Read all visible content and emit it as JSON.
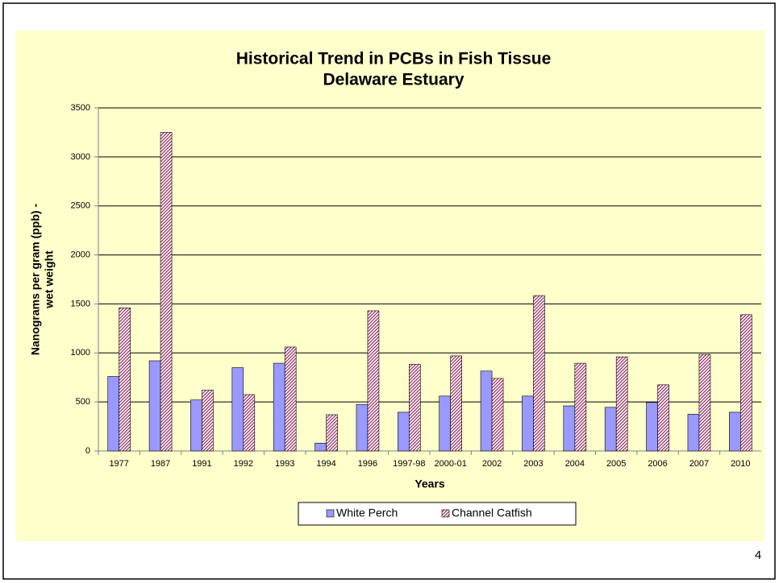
{
  "chart_data": {
    "type": "bar",
    "title": "Historical Trend in PCBs in Fish Tissue",
    "subtitle": "Delaware Estuary",
    "y_label": [
      "Nanograms per gram (ppb) -",
      "wet weight"
    ],
    "x_label": "Years",
    "categories": [
      "1977",
      "1987",
      "1991",
      "1992",
      "1993",
      "1994",
      "1996",
      "1997-98",
      "2000-01",
      "2002",
      "2003",
      "2004",
      "2005",
      "2006",
      "2007",
      "2010"
    ],
    "series": [
      {
        "name": "White Perch",
        "color": "#9999ff",
        "values": [
          760,
          920,
          520,
          850,
          895,
          80,
          475,
          395,
          560,
          815,
          560,
          460,
          445,
          495,
          375,
          395
        ]
      },
      {
        "name": "Channel Catfish",
        "color": "#993366",
        "values": [
          1460,
          3250,
          620,
          575,
          1060,
          370,
          1430,
          885,
          970,
          740,
          1585,
          895,
          960,
          675,
          985,
          1390
        ]
      }
    ],
    "ylim": [
      0,
      3500
    ],
    "yticks": [
      0,
      500,
      1000,
      1500,
      2000,
      2500,
      3000,
      3500
    ],
    "grid": true,
    "legend": "bottom"
  },
  "slide_number": 4
}
